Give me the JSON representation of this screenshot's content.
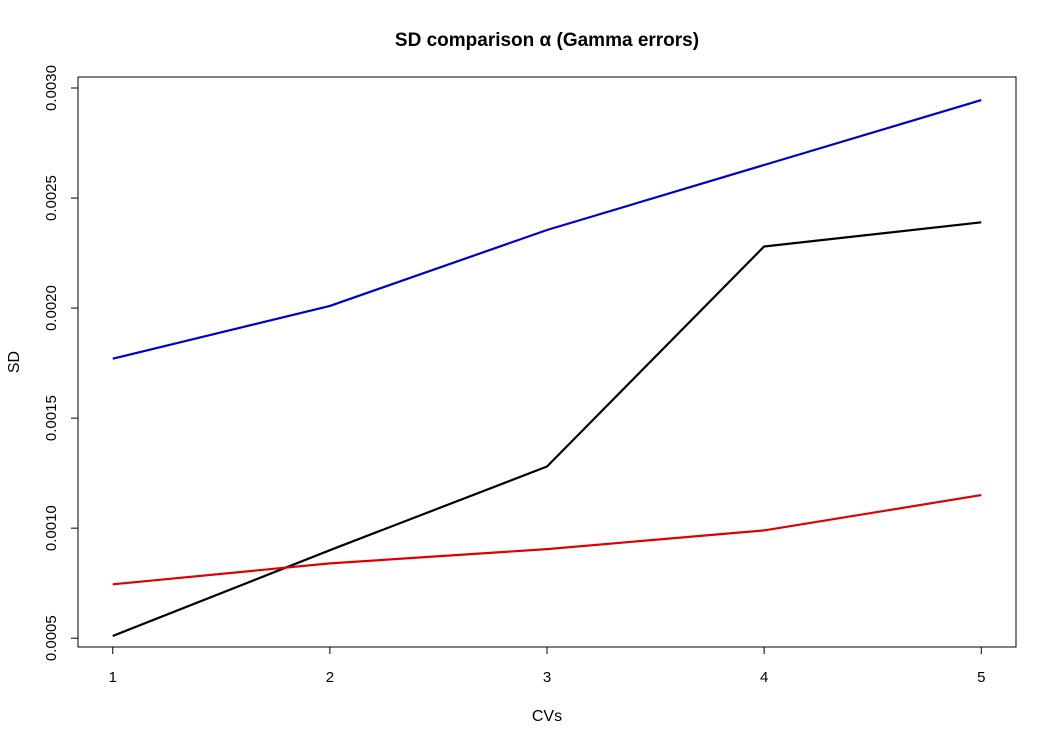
{
  "chart_data": {
    "type": "line",
    "title": "SD comparison α (Gamma errors)",
    "xlabel": "CVs",
    "ylabel": "SD",
    "x": [
      1,
      2,
      3,
      4,
      5
    ],
    "xlim": [
      0.84,
      5.16
    ],
    "ylim": [
      0.00046,
      0.00305
    ],
    "x_ticks": [
      "1",
      "2",
      "3",
      "4",
      "5"
    ],
    "y_ticks": [
      "0.0005",
      "0.0010",
      "0.0015",
      "0.0020",
      "0.0025",
      "0.0030"
    ],
    "grid": false,
    "series": [
      {
        "color": "#0000cc",
        "values": [
          0.00177,
          0.00201,
          0.002355,
          0.00265,
          0.002945
        ]
      },
      {
        "color": "#000000",
        "values": [
          0.00051,
          0.0009,
          0.00128,
          0.00228,
          0.00239
        ]
      },
      {
        "color": "#dd0000",
        "values": [
          0.000745,
          0.00084,
          0.000905,
          0.00099,
          0.00115
        ]
      }
    ]
  }
}
